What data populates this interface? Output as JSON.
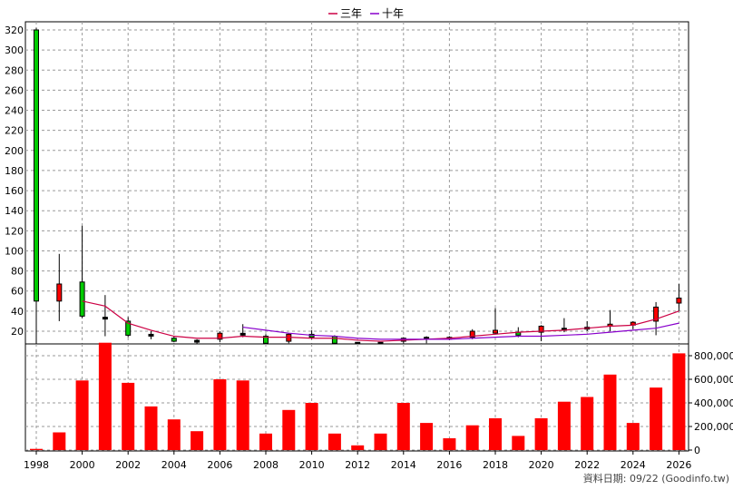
{
  "legend": [
    {
      "label": "三年",
      "color": "#cc0044"
    },
    {
      "label": "十年",
      "color": "#8800cc"
    }
  ],
  "footnote": "資料日期: 09/22 (Goodinfo.tw)",
  "colors": {
    "up": "#ff0000",
    "down": "#00cc00",
    "volume": "#ff0000",
    "grid": "#9a9a9a"
  },
  "chart_data": [
    {
      "type": "candlestick",
      "title": "",
      "x": [
        1998,
        1999,
        2000,
        2001,
        2002,
        2003,
        2004,
        2005,
        2006,
        2007,
        2008,
        2009,
        2010,
        2011,
        2012,
        2013,
        2014,
        2015,
        2016,
        2017,
        2018,
        2019,
        2020,
        2021,
        2022,
        2023,
        2024,
        2025,
        2026
      ],
      "open": [
        320,
        50,
        69,
        33,
        30,
        16,
        13,
        10,
        12,
        17,
        15,
        10,
        16,
        15,
        8,
        8,
        10,
        13,
        13,
        14,
        19,
        18,
        19,
        22,
        23,
        25,
        27,
        30,
        48
      ],
      "close": [
        50,
        67,
        35,
        33,
        16,
        16,
        10,
        10,
        18,
        17,
        8,
        17,
        15,
        8,
        8,
        8,
        13,
        13,
        13,
        20,
        20,
        17,
        25,
        22,
        23,
        27,
        28,
        44,
        53
      ],
      "high": [
        322,
        97,
        125,
        56,
        34,
        20,
        15,
        12,
        20,
        27,
        17,
        18,
        21,
        16,
        9,
        9,
        14,
        15,
        15,
        22,
        43,
        24,
        26,
        33,
        30,
        41,
        30,
        49,
        67
      ],
      "low": [
        0,
        30,
        33,
        15,
        14,
        12,
        9,
        7,
        9,
        14,
        8,
        8,
        12,
        7,
        6,
        6,
        8,
        8,
        11,
        12,
        17,
        14,
        10,
        19,
        20,
        20,
        22,
        16,
        40
      ],
      "series": [
        {
          "name": "三年",
          "x": [
            2000,
            2001,
            2002,
            2003,
            2004,
            2005,
            2006,
            2007,
            2008,
            2009,
            2010,
            2011,
            2012,
            2013,
            2014,
            2015,
            2016,
            2017,
            2018,
            2019,
            2020,
            2021,
            2022,
            2023,
            2024,
            2025,
            2026
          ],
          "values": [
            50,
            45,
            28,
            21,
            15,
            13,
            13,
            15,
            14,
            14,
            13,
            13,
            11,
            10,
            11,
            12,
            13,
            15,
            17,
            19,
            20,
            21,
            23,
            25,
            26,
            32,
            40
          ]
        },
        {
          "name": "十年",
          "x": [
            2007,
            2008,
            2009,
            2010,
            2011,
            2012,
            2013,
            2014,
            2015,
            2016,
            2017,
            2018,
            2019,
            2020,
            2021,
            2022,
            2023,
            2024,
            2025,
            2026
          ],
          "values": [
            24,
            21,
            18,
            16,
            15,
            13,
            12,
            12,
            12,
            12,
            13,
            14,
            15,
            15,
            16,
            17,
            19,
            21,
            23,
            28
          ]
        }
      ],
      "ylim": [
        0,
        325
      ],
      "yticks": [
        20,
        40,
        60,
        80,
        100,
        120,
        140,
        160,
        180,
        200,
        220,
        240,
        260,
        280,
        300,
        320
      ]
    },
    {
      "type": "bar",
      "title": "",
      "x": [
        1998,
        1999,
        2000,
        2001,
        2002,
        2003,
        2004,
        2005,
        2006,
        2007,
        2008,
        2009,
        2010,
        2011,
        2012,
        2013,
        2014,
        2015,
        2016,
        2017,
        2018,
        2019,
        2020,
        2021,
        2022,
        2023,
        2024,
        2025,
        2026
      ],
      "values": [
        10000,
        150000,
        590000,
        910000,
        570000,
        370000,
        260000,
        160000,
        600000,
        590000,
        140000,
        340000,
        400000,
        140000,
        40000,
        140000,
        400000,
        230000,
        100000,
        210000,
        270000,
        120000,
        270000,
        410000,
        450000,
        640000,
        230000,
        530000,
        820000
      ],
      "ylim": [
        0,
        900000
      ],
      "yticks": [
        0,
        200000,
        400000,
        600000,
        800000
      ],
      "ytick_labels": [
        "0",
        "200,000",
        "400,000",
        "600,000",
        "800,000"
      ]
    }
  ],
  "xtick_labels": [
    "1998",
    "2000",
    "2002",
    "2004",
    "2006",
    "2008",
    "2010",
    "2012",
    "2014",
    "2016",
    "2018",
    "2020",
    "2022",
    "2024",
    "2026"
  ]
}
